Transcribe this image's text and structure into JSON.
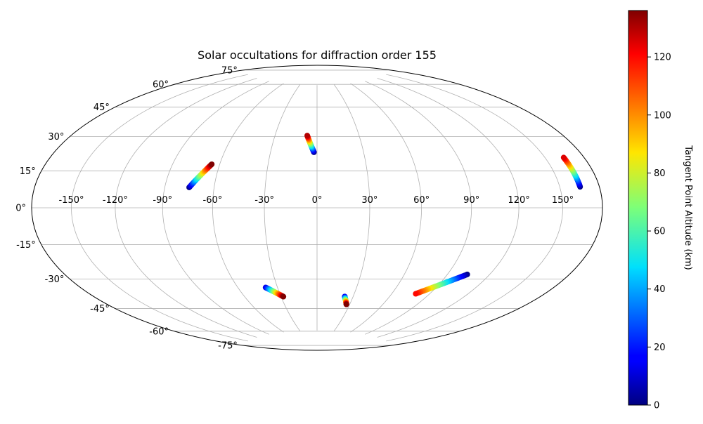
{
  "chart_data": {
    "type": "scatter",
    "projection": "hammer",
    "title": "Solar occultations for diffraction order 155",
    "grid": true,
    "longitude_ticks": [
      {
        "value": -150,
        "label": "-150°"
      },
      {
        "value": -120,
        "label": "-120°"
      },
      {
        "value": -90,
        "label": "-90°"
      },
      {
        "value": -60,
        "label": "-60°"
      },
      {
        "value": -30,
        "label": "-30°"
      },
      {
        "value": 0,
        "label": "0°"
      },
      {
        "value": 30,
        "label": "30°"
      },
      {
        "value": 60,
        "label": "60°"
      },
      {
        "value": 90,
        "label": "90°"
      },
      {
        "value": 120,
        "label": "120°"
      },
      {
        "value": 150,
        "label": "150°"
      }
    ],
    "latitude_ticks": [
      {
        "value": 75,
        "label": "75°"
      },
      {
        "value": 60,
        "label": "60°"
      },
      {
        "value": 45,
        "label": "45°"
      },
      {
        "value": 30,
        "label": "30°"
      },
      {
        "value": 15,
        "label": "15°"
      },
      {
        "value": 0,
        "label": "0°"
      },
      {
        "value": -15,
        "label": "-15°"
      },
      {
        "value": -30,
        "label": "-30°"
      },
      {
        "value": -45,
        "label": "-45°"
      },
      {
        "value": -60,
        "label": "-60°"
      },
      {
        "value": -75,
        "label": "-75°"
      }
    ],
    "tracks": [
      {
        "lon_start": -75,
        "lat_start": 11,
        "alt_start": 0,
        "lon_end": -65,
        "lat_end": 24,
        "alt_end": 136
      },
      {
        "lon_start": -2,
        "lat_start": 32,
        "alt_start": 0,
        "lon_end": -7,
        "lat_end": 42,
        "alt_end": 130
      },
      {
        "lon_start": 165,
        "lat_start": 9,
        "alt_start": 0,
        "lon_end": 164,
        "lat_end": 22,
        "alt_end": 125
      },
      {
        "lon_start": -39,
        "lat_start": -46,
        "alt_start": 10,
        "lon_end": -28,
        "lat_end": -52,
        "alt_end": 136
      },
      {
        "lon_start": 23,
        "lat_start": -52,
        "alt_start": 10,
        "lon_end": 27,
        "lat_end": -57,
        "alt_end": 136
      },
      {
        "lon_start": 104,
        "lat_start": -35,
        "alt_start": 0,
        "lon_end": 79,
        "lat_end": -48,
        "alt_end": 120
      }
    ],
    "colorbar": {
      "label": "Tangent Point Altitude (km)",
      "min": 0,
      "max": 136,
      "ticks": [
        {
          "value": 0,
          "label": "0"
        },
        {
          "value": 20,
          "label": "20"
        },
        {
          "value": 40,
          "label": "40"
        },
        {
          "value": 60,
          "label": "60"
        },
        {
          "value": 80,
          "label": "80"
        },
        {
          "value": 100,
          "label": "100"
        },
        {
          "value": 120,
          "label": "120"
        }
      ],
      "colormap": "jet"
    },
    "colors": {
      "gridline": "#b0b0b0",
      "outline": "#000000"
    }
  }
}
